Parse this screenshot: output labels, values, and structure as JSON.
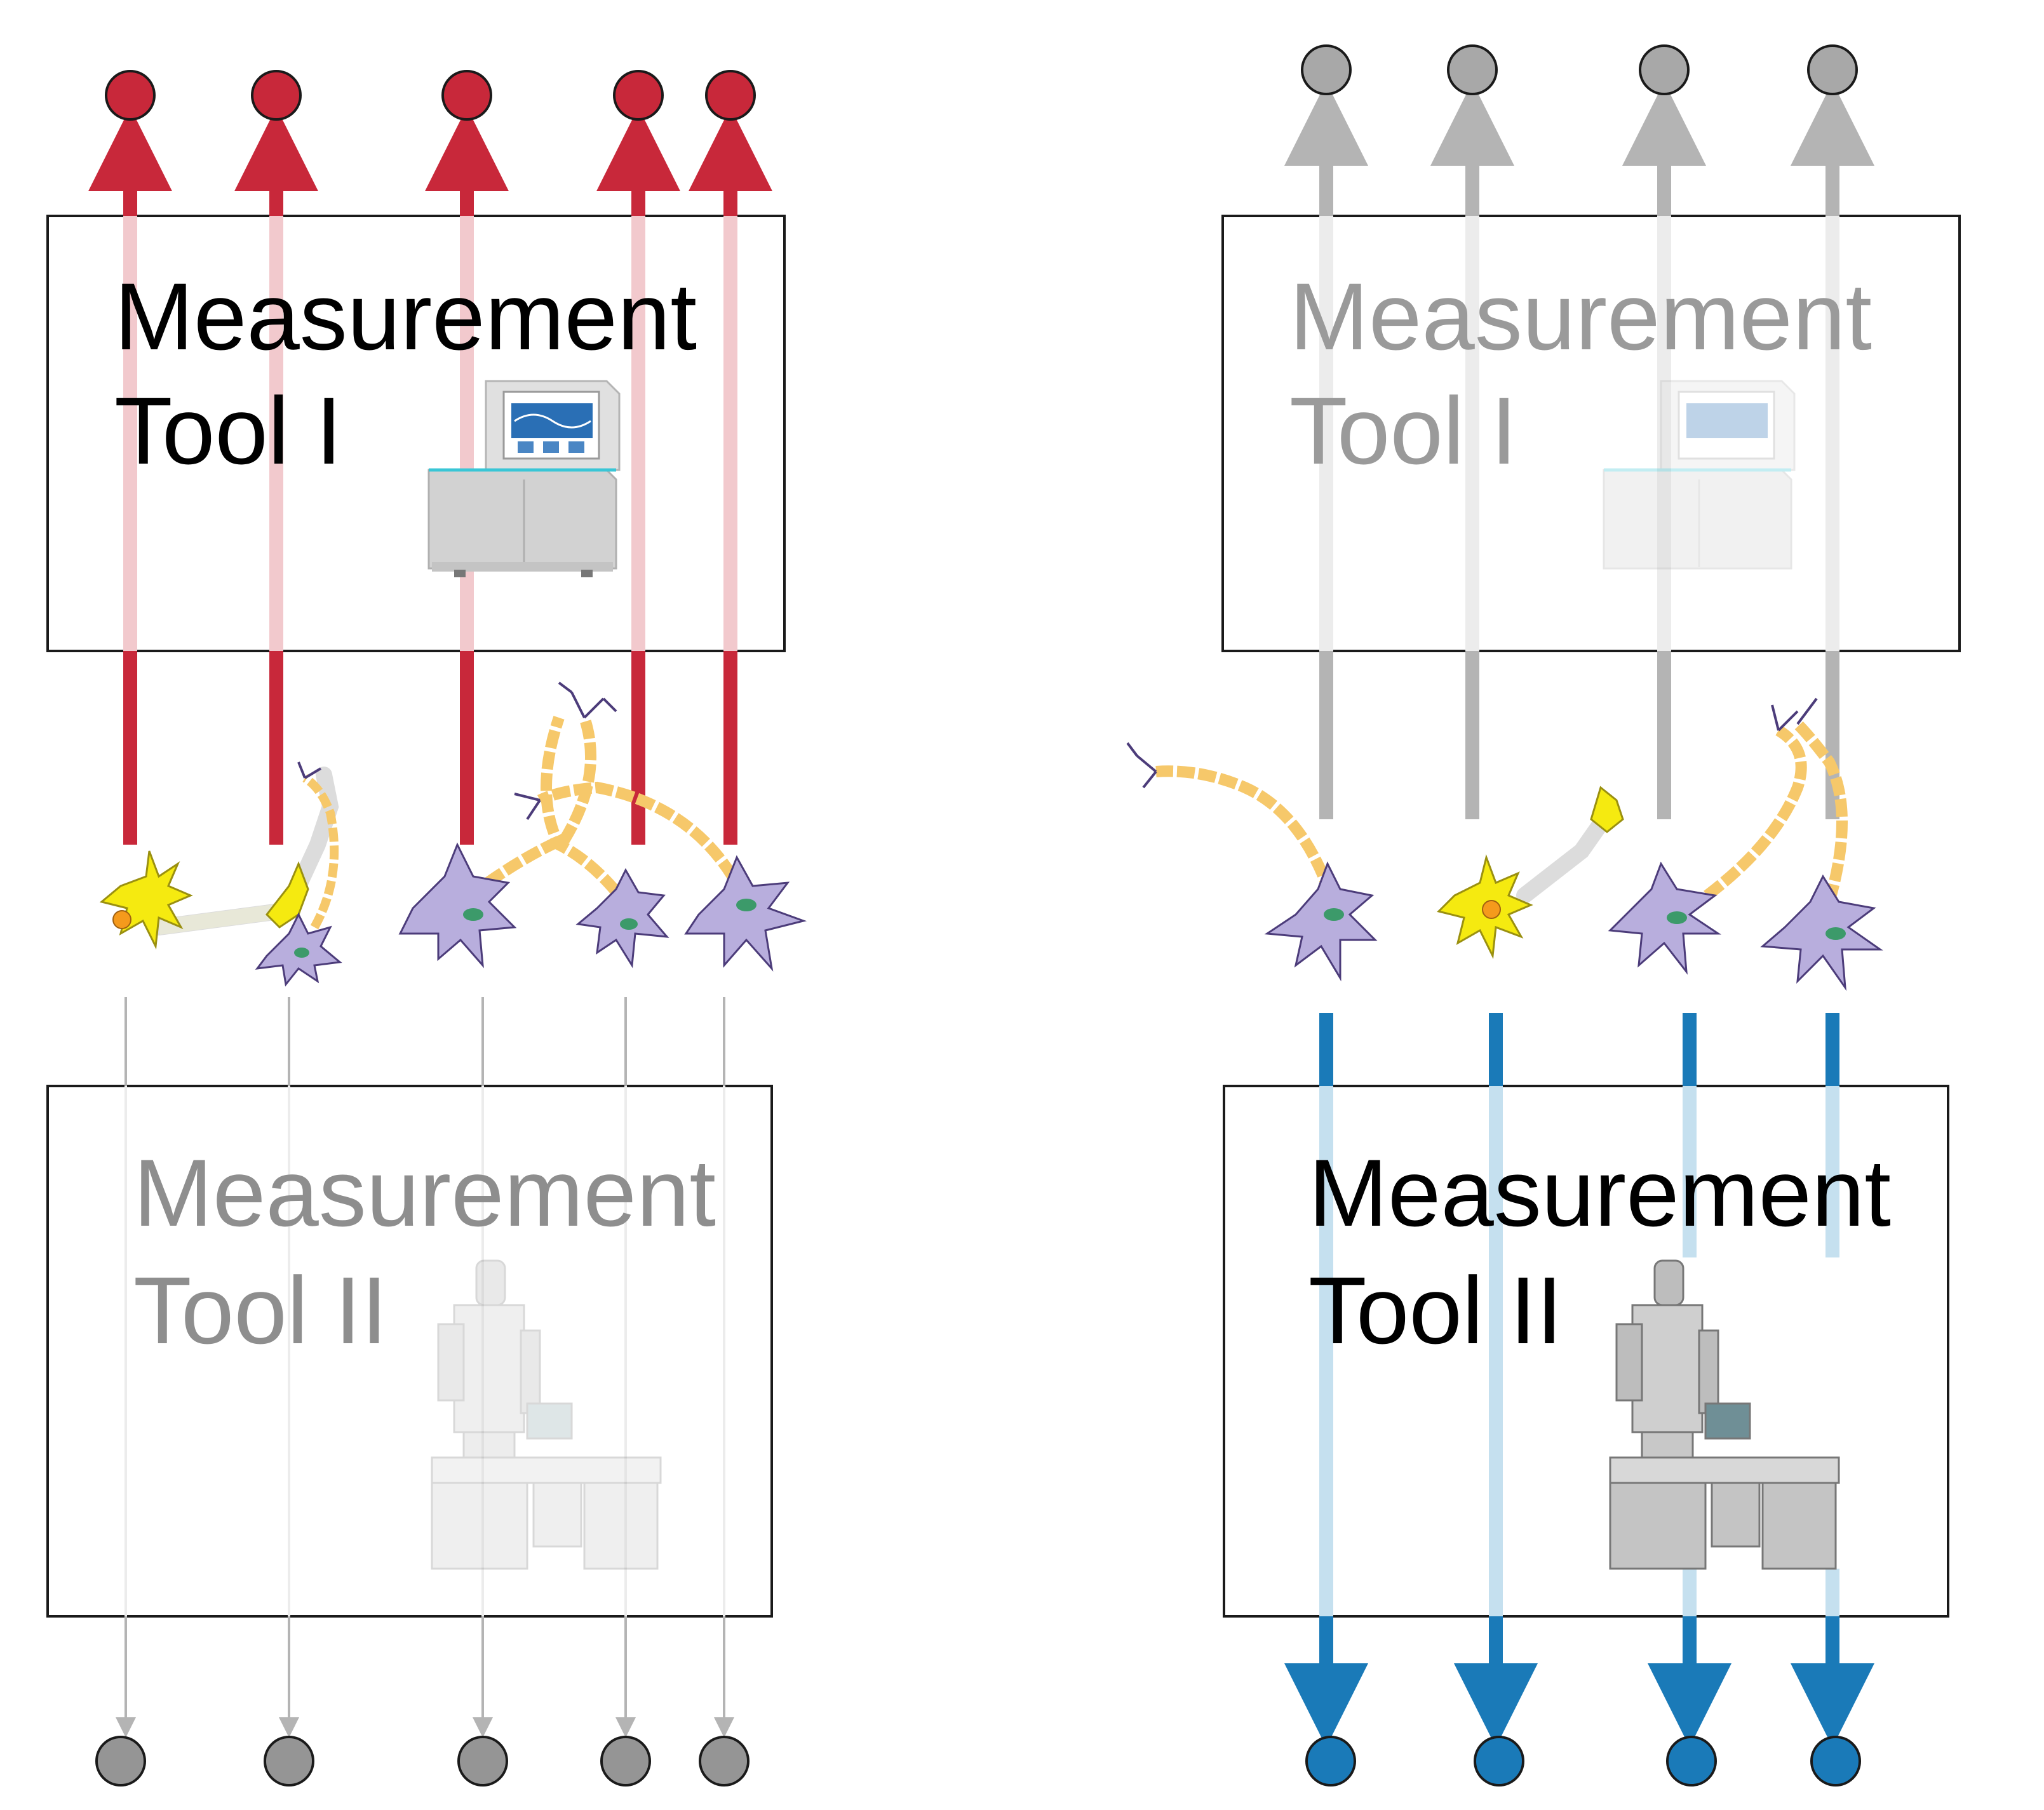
{
  "panels": {
    "left": {
      "tool_top": {
        "line1": "Measurement",
        "line2": "Tool I"
      },
      "tool_bottom": {
        "line1": "Measurement",
        "line2": "Tool II"
      }
    },
    "right": {
      "tool_top": {
        "line1": "Measurement",
        "line2": "Tool I"
      },
      "tool_bottom": {
        "line1": "Measurement",
        "line2": "Tool II"
      }
    }
  },
  "colors": {
    "red": "#c8283a",
    "red_faded": "#f2c9cd",
    "gray": "#9a9a9a",
    "gray_light": "#b4b4b4",
    "gray_faded": "#e6e6e6",
    "blue": "#1a7ab8",
    "blue_faded": "#c5e0ef",
    "neuron_yellow": "#f5ea10",
    "neuron_purple": "#b8aedd",
    "axon_orange": "#f6c86a",
    "nucleus_green": "#3c9a6a",
    "nucleus_orange": "#f59a1c"
  },
  "icons": {
    "sequencer": "sequencer-machine-icon",
    "microscope": "electron-microscope-icon",
    "neuron": "neuron-icon"
  }
}
